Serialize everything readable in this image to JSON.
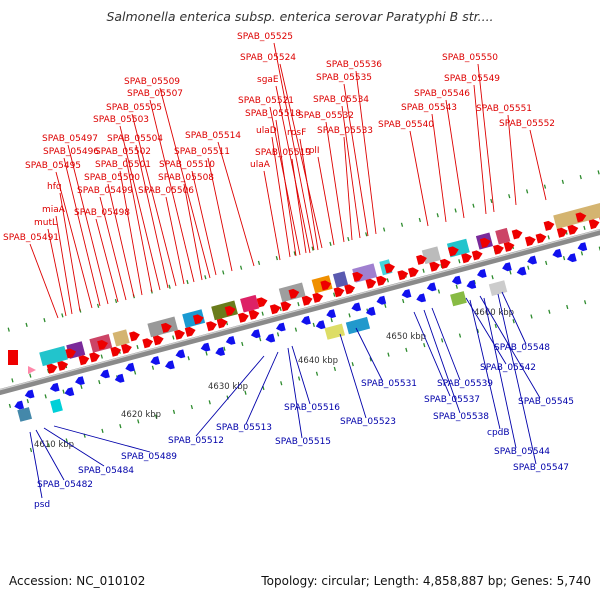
{
  "title": "Salmonella enterica subsp. enterica serovar Paratyphi B str....",
  "footer": {
    "accession": "Accession: NC_010102",
    "summary": "Topology: circular; Length: 4,858,887 bp; Genes: 5,740"
  },
  "colors": {
    "forward": "#ee0000",
    "reverse": "#1111ee",
    "backbone": "#8a8a8a",
    "tick": "#2e8b2e",
    "label_forward": "#dd0000",
    "label_reverse": "#0000aa",
    "ruler_text": "#333333"
  },
  "ruler_labels": [
    "4610 kbp",
    "4620 kbp",
    "4630 kbp",
    "4640 kbp",
    "4650 kbp",
    "4660 kbp"
  ],
  "forward_genes": [
    "SPAB_05491",
    "mutL",
    "miaA",
    "hfq",
    "SPAB_05495",
    "SPAB_05496",
    "SPAB_05497",
    "SPAB_05498",
    "SPAB_05499",
    "SPAB_05500",
    "SPAB_05501",
    "SPAB_05502",
    "SPAB_05503",
    "SPAB_05504",
    "SPAB_05505",
    "SPAB_05506",
    "SPAB_05507",
    "SPAB_05508",
    "SPAB_05509",
    "SPAB_05510",
    "SPAB_05511",
    "SPAB_05514",
    "ulaA",
    "ulaD",
    "SPAB_05518",
    "SPAB_05519",
    "SPAB_05521",
    "sgaE",
    "rpsF",
    "SPAB_05524",
    "SPAB_05525",
    "rplI",
    "SPAB_05532",
    "SPAB_05533",
    "SPAB_05534",
    "SPAB_05535",
    "SPAB_05536",
    "SPAB_05540",
    "SPAB_05543",
    "SPAB_05546",
    "SPAB_05549",
    "SPAB_05550",
    "SPAB_05551",
    "SPAB_05552"
  ],
  "reverse_genes": [
    "psd",
    "SPAB_05482",
    "SPAB_05484",
    "SPAB_05489",
    "SPAB_05512",
    "SPAB_05513",
    "SPAB_05515",
    "SPAB_05516",
    "SPAB_05523",
    "SPAB_05531",
    "SPAB_05537",
    "SPAB_05538",
    "SPAB_05539",
    "SPAB_05542",
    "SPAB_05545",
    "SPAB_05548",
    "cpdB",
    "SPAB_05544",
    "SPAB_05547"
  ]
}
